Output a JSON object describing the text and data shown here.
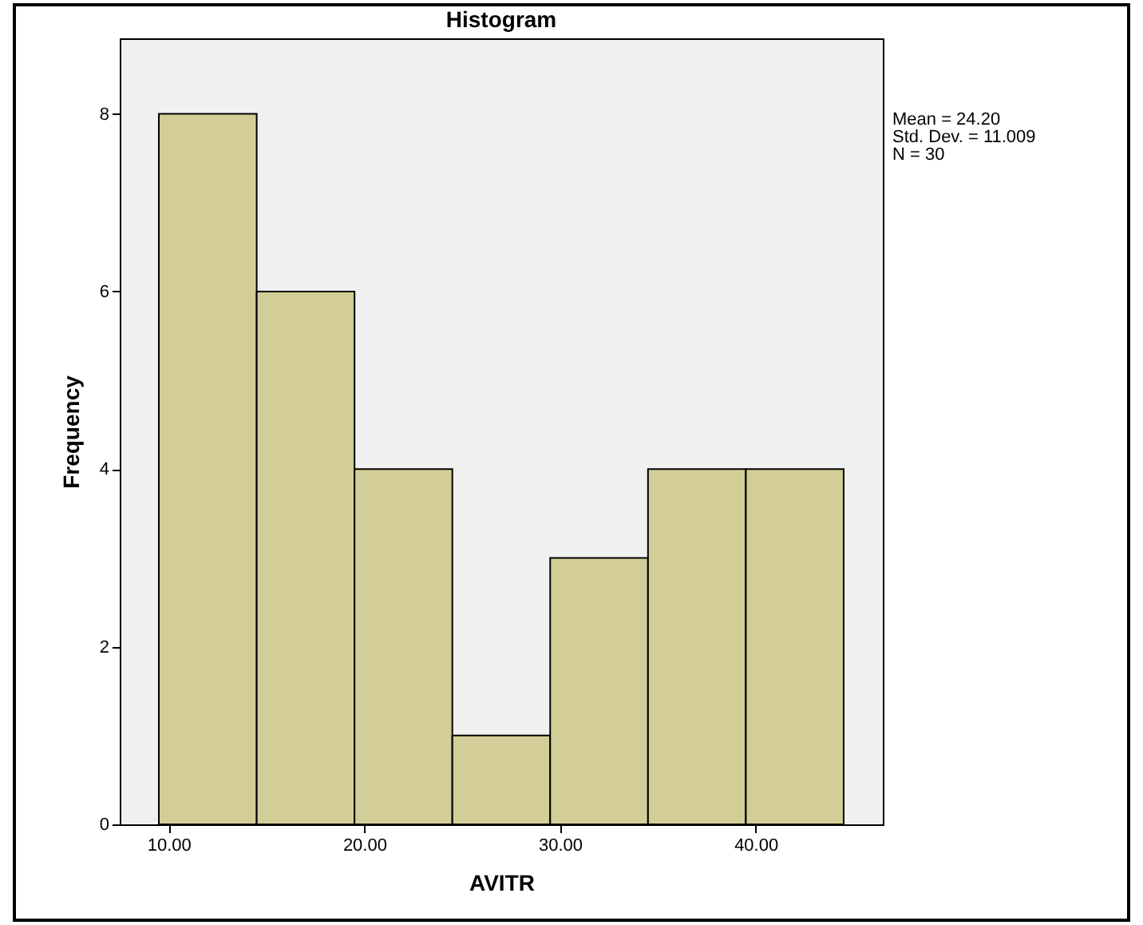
{
  "chart_data": {
    "type": "histogram",
    "title": "Histogram",
    "xlabel": "AVITR",
    "ylabel": "Frequency",
    "bins": [
      9.5,
      14.5,
      19.5,
      24.5,
      29.5,
      34.5,
      39.5,
      44.5
    ],
    "values": [
      8,
      6,
      4,
      1,
      3,
      4,
      4
    ],
    "color": "#d3ce97",
    "xlim": [
      7.5,
      46.5
    ],
    "xticks": [
      {
        "value": 10,
        "label": "10.00"
      },
      {
        "value": 20,
        "label": "20.00"
      },
      {
        "value": 30,
        "label": "30.00"
      },
      {
        "value": 40,
        "label": "40.00"
      }
    ],
    "ylim": [
      0,
      8.85
    ],
    "yticks": [
      0,
      2,
      4,
      6,
      8
    ],
    "grid": false,
    "annotations": [
      "Mean = 24.20",
      "Std. Dev. = 11.009",
      "N = 30"
    ]
  }
}
